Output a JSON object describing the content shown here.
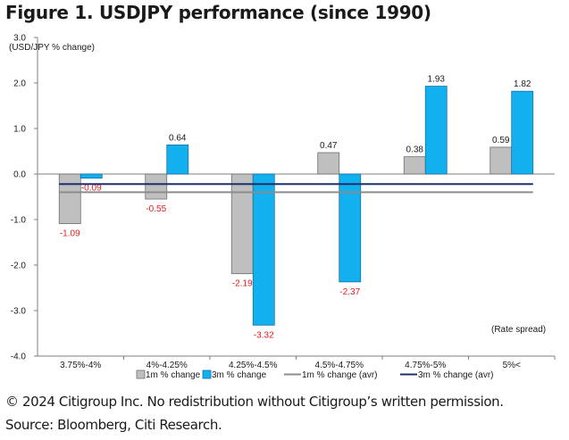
{
  "title": "Figure 1. USDJPY performance (since 1990)",
  "footer": {
    "copyright": "© 2024 Citigroup Inc. No redistribution without Citigroup’s written permission.",
    "source": "Source: Bloomberg, Citi Research."
  },
  "colors": {
    "bar_1m": "#bfbfbf",
    "bar_3m": "#12b0ee",
    "line_1m_avr": "#8c8c8c",
    "line_3m_avr": "#1f2f6b",
    "negative_label": "#e31b1b",
    "positive_label": "#1a1a1a"
  },
  "chart_data": {
    "type": "bar",
    "ylabel": "(USD/JPY % change)",
    "xlabel": "(Rate spread)",
    "ylim": [
      -4.0,
      3.0
    ],
    "yticks": [
      "3.0",
      "2.0",
      "1.0",
      "0.0",
      "-1.0",
      "-2.0",
      "-3.0",
      "-4.0"
    ],
    "ytick_values": [
      3,
      2,
      1,
      0,
      -1,
      -2,
      -3,
      -4
    ],
    "categories": [
      "3.75%-4%",
      "4%-4.25%",
      "4.25%-4.5%",
      "4.5%-4.75%",
      "4.75%-5%",
      "5%<"
    ],
    "series": [
      {
        "name": "1m % change",
        "values": [
          -1.09,
          -0.55,
          -2.19,
          0.47,
          0.38,
          0.59
        ],
        "labels": [
          "-1.09",
          "-0.55",
          "-2.19",
          "0.47",
          "0.38",
          "0.59"
        ]
      },
      {
        "name": "3m % change",
        "values": [
          -0.09,
          0.64,
          -3.32,
          -2.37,
          1.93,
          1.82
        ],
        "labels": [
          "-0.09",
          "0.64",
          "-3.32",
          "-2.37",
          "1.93",
          "1.82"
        ]
      }
    ],
    "lines": [
      {
        "name": "1m % change (avr)",
        "value": -0.4
      },
      {
        "name": "3m % change (avr)",
        "value": -0.22
      }
    ],
    "grid": false,
    "legend_position": "bottom"
  }
}
